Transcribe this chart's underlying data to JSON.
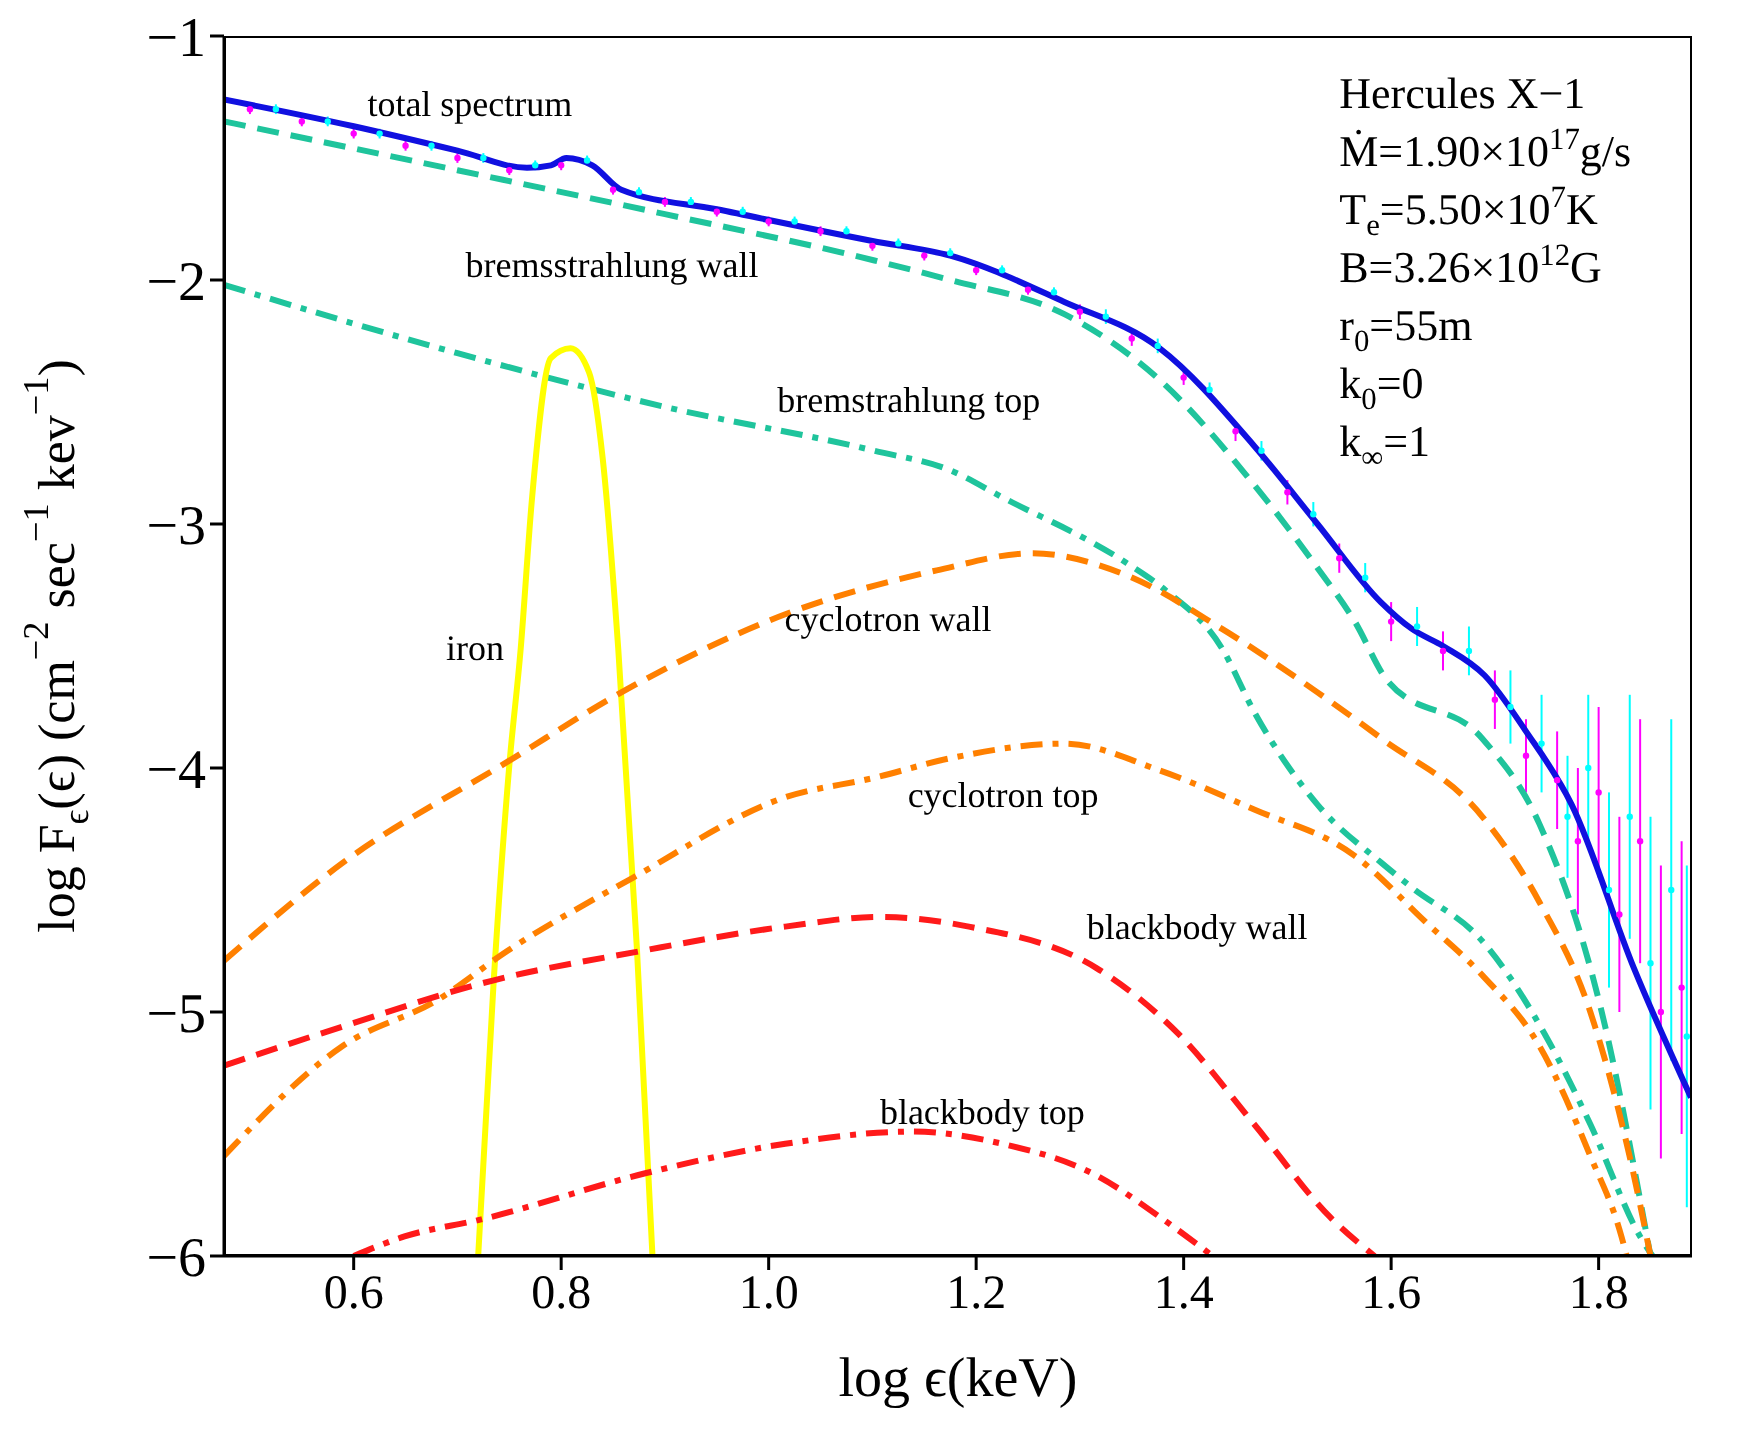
{
  "chart_data": {
    "type": "line",
    "xlabel": "log ϵ(keV)",
    "ylabel": "log F$_{ϵ}$(ϵ) (cm$^{−2}$ sec$^{−1}$ kev$^{−1}$)",
    "xlim": [
      0.475,
      1.89
    ],
    "xticks": [
      0.6,
      0.8,
      {
        "value": 1,
        "label": "1.0"
      },
      1.2,
      1.4,
      1.6,
      1.8
    ],
    "ylim": [
      -6,
      -1
    ],
    "yticks": [
      {
        "value": -6,
        "label": "−6"
      },
      {
        "value": -5,
        "label": "−5"
      },
      {
        "value": -4,
        "label": "−4"
      },
      {
        "value": -3,
        "label": "−3"
      },
      {
        "value": -2,
        "label": "−2"
      },
      {
        "value": -1,
        "label": "−1"
      }
    ],
    "grid": false,
    "legend": false,
    "marker": "none",
    "annotations": [
      "Hercules X−1",
      "Ṁ=1.90×10$^{17}$g/s",
      "T$_{e}$=5.50×10$^{7}$K",
      "B=3.26×10$^{12}$G",
      "r$_{0}$=55m",
      "k$_{0}$=0",
      "k$_{∞}$=1"
    ],
    "series": [
      {
        "type": "scatter",
        "color": "#ff00ff",
        "marker": "circle",
        "x": [
          0.5,
          0.55,
          0.6,
          0.65,
          0.7,
          0.75,
          0.8,
          0.85,
          0.9,
          0.95,
          1.0,
          1.05,
          1.1,
          1.15,
          1.2,
          1.25,
          1.3,
          1.35,
          1.4,
          1.45,
          1.5,
          1.55,
          1.6,
          1.65,
          1.7,
          1.73,
          1.76,
          1.78,
          1.8,
          1.82,
          1.84,
          1.86,
          1.88
        ],
        "values": [
          -1.3,
          -1.35,
          -1.4,
          -1.45,
          -1.5,
          -1.55,
          -1.53,
          -1.63,
          -1.68,
          -1.72,
          -1.76,
          -1.8,
          -1.86,
          -1.9,
          -1.96,
          -2.04,
          -2.13,
          -2.24,
          -2.4,
          -2.62,
          -2.87,
          -3.14,
          -3.4,
          -3.52,
          -3.72,
          -3.95,
          -4.05,
          -4.3,
          -4.1,
          -4.6,
          -4.3,
          -5.0,
          -4.9
        ],
        "errors": [
          0.02,
          0.02,
          0.02,
          0.02,
          0.02,
          0.02,
          0.02,
          0.02,
          0.02,
          0.02,
          0.02,
          0.02,
          0.02,
          0.02,
          0.02,
          0.02,
          0.03,
          0.03,
          0.03,
          0.04,
          0.05,
          0.06,
          0.08,
          0.08,
          0.12,
          0.15,
          0.2,
          0.3,
          0.35,
          0.4,
          0.5,
          0.6,
          0.6
        ]
      },
      {
        "type": "scatter",
        "color": "#00ffff",
        "marker": "circle",
        "x": [
          0.525,
          0.575,
          0.625,
          0.675,
          0.725,
          0.775,
          0.825,
          0.875,
          0.925,
          0.975,
          1.025,
          1.075,
          1.125,
          1.175,
          1.225,
          1.275,
          1.325,
          1.375,
          1.425,
          1.475,
          1.525,
          1.575,
          1.625,
          1.675,
          1.715,
          1.745,
          1.77,
          1.79,
          1.81,
          1.83,
          1.85,
          1.87,
          1.885
        ],
        "values": [
          -1.3,
          -1.35,
          -1.4,
          -1.45,
          -1.5,
          -1.53,
          -1.51,
          -1.64,
          -1.68,
          -1.72,
          -1.76,
          -1.8,
          -1.85,
          -1.89,
          -1.96,
          -2.05,
          -2.15,
          -2.27,
          -2.45,
          -2.7,
          -2.96,
          -3.22,
          -3.42,
          -3.52,
          -3.75,
          -3.9,
          -4.2,
          -4.0,
          -4.5,
          -4.2,
          -4.8,
          -4.5,
          -5.1
        ],
        "errors": [
          0.02,
          0.02,
          0.02,
          0.02,
          0.02,
          0.02,
          0.02,
          0.02,
          0.02,
          0.02,
          0.02,
          0.02,
          0.02,
          0.02,
          0.02,
          0.02,
          0.03,
          0.03,
          0.03,
          0.04,
          0.05,
          0.06,
          0.08,
          0.1,
          0.15,
          0.2,
          0.25,
          0.3,
          0.4,
          0.5,
          0.6,
          0.7,
          0.7
        ]
      },
      {
        "name": "total spectrum",
        "color": "#1010e0",
        "line_style": "solid",
        "x": [
          0.475,
          0.6,
          0.7,
          0.767,
          0.79,
          0.805,
          0.83,
          0.858,
          0.95,
          1.1,
          1.175,
          1.285,
          1.377,
          1.468,
          1.529,
          1.59,
          1.62,
          1.65,
          1.69,
          1.73,
          1.774,
          1.834,
          1.889
        ],
        "values": [
          -1.26,
          -1.37,
          -1.47,
          -1.54,
          -1.53,
          -1.5,
          -1.53,
          -1.63,
          -1.71,
          -1.84,
          -1.9,
          -2.09,
          -2.28,
          -2.68,
          -3.0,
          -3.32,
          -3.43,
          -3.5,
          -3.62,
          -3.85,
          -4.15,
          -4.82,
          -5.35
        ]
      },
      {
        "name": "bremsstrahlung wall",
        "color": "#1fc49c",
        "line_style": "dashed",
        "x": [
          0.475,
          0.7,
          0.9,
          1.102,
          1.175,
          1.285,
          1.377,
          1.468,
          1.529,
          1.565,
          1.596,
          1.688,
          1.743,
          1.803,
          1.85
        ],
        "values": [
          -1.35,
          -1.55,
          -1.73,
          -1.92,
          -2.0,
          -2.14,
          -2.41,
          -2.84,
          -3.18,
          -3.4,
          -3.64,
          -3.88,
          -4.23,
          -5.0,
          -6.0
        ]
      },
      {
        "name": "bremstrahlung top",
        "color": "#1fc49c",
        "line_style": "dashdot",
        "x": [
          0.475,
          0.7,
          0.9,
          1.102,
          1.175,
          1.225,
          1.345,
          1.382,
          1.437,
          1.468,
          1.529,
          1.591,
          1.62,
          1.688,
          1.748,
          1.792,
          1.84,
          1.852
        ],
        "values": [
          -2.02,
          -2.3,
          -2.52,
          -2.7,
          -2.78,
          -2.89,
          -3.16,
          -3.27,
          -3.51,
          -3.77,
          -4.15,
          -4.39,
          -4.49,
          -4.71,
          -5.09,
          -5.46,
          -5.92,
          -6.0
        ]
      },
      {
        "name": "iron",
        "color": "#ffff00",
        "line_style": "solid",
        "x": [
          0.72,
          0.735,
          0.75,
          0.761,
          0.772,
          0.79,
          0.809,
          0.827,
          0.84,
          0.855,
          0.873,
          0.888
        ],
        "values": [
          -6.0,
          -4.87,
          -3.99,
          -3.51,
          -2.89,
          -2.32,
          -2.28,
          -2.38,
          -2.73,
          -3.51,
          -4.74,
          -6.0
        ]
      },
      {
        "name": "cyclotron wall",
        "color": "#ff8000",
        "line_style": "dashed",
        "x": [
          0.475,
          0.589,
          0.75,
          0.858,
          1.016,
          1.162,
          1.254,
          1.345,
          1.437,
          1.529,
          1.591,
          1.688,
          1.743,
          1.792,
          1.834,
          1.85
        ],
        "values": [
          -4.79,
          -4.39,
          -3.97,
          -3.69,
          -3.37,
          -3.19,
          -3.12,
          -3.21,
          -3.43,
          -3.69,
          -3.88,
          -4.2,
          -4.55,
          -5.0,
          -5.67,
          -6.0
        ]
      },
      {
        "name": "cyclotron top",
        "color": "#ff8000",
        "line_style": "dashdot",
        "x": [
          0.475,
          0.589,
          0.681,
          0.748,
          0.869,
          1.016,
          1.102,
          1.175,
          1.285,
          1.377,
          1.468,
          1.565,
          1.633,
          1.688,
          1.743,
          1.792,
          1.822,
          1.827
        ],
        "values": [
          -5.59,
          -5.14,
          -4.95,
          -4.75,
          -4.45,
          -4.12,
          -4.04,
          -3.96,
          -3.9,
          -4.01,
          -4.17,
          -4.36,
          -4.63,
          -4.85,
          -5.14,
          -5.59,
          -5.92,
          -6.0
        ]
      },
      {
        "name": "blackbody wall",
        "color": "#ff1a1a",
        "line_style": "dashed",
        "x": [
          0.475,
          0.589,
          0.735,
          0.877,
          1.016,
          1.107,
          1.193,
          1.316,
          1.395,
          1.468,
          1.541,
          1.584
        ],
        "values": [
          -5.22,
          -5.06,
          -4.87,
          -4.75,
          -4.65,
          -4.61,
          -4.65,
          -4.82,
          -5.09,
          -5.46,
          -5.84,
          -6.0
        ]
      },
      {
        "name": "blackbody top",
        "color": "#ff1a1a",
        "line_style": "dashdot",
        "x": [
          0.6,
          0.649,
          0.723,
          0.882,
          1.016,
          1.138,
          1.225,
          1.316,
          1.377,
          1.428
        ],
        "values": [
          -6.0,
          -5.92,
          -5.85,
          -5.66,
          -5.54,
          -5.49,
          -5.54,
          -5.67,
          -5.84,
          -6.0
        ]
      }
    ]
  }
}
